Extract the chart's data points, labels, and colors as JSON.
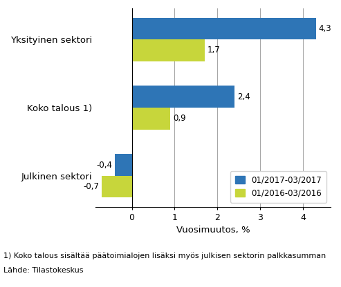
{
  "categories": [
    "Julkinen sektori",
    "Koko talous 1)",
    "Yksityinen sektori"
  ],
  "series": [
    {
      "label": "01/2017-03/2017",
      "color": "#2e75b6",
      "values": [
        -0.4,
        2.4,
        4.3
      ]
    },
    {
      "label": "01/2016-03/2016",
      "color": "#c7d63b",
      "values": [
        -0.7,
        0.9,
        1.7
      ]
    }
  ],
  "xlabel": "Vuosimuutos, %",
  "xlim": [
    -0.85,
    4.65
  ],
  "xticks": [
    0,
    1,
    2,
    3,
    4
  ],
  "xtick_labels": [
    "0",
    "1",
    "2",
    "3",
    "4"
  ],
  "bar_height": 0.32,
  "footnote1": "1) Koko talous sisältää päätoimialojen lisäksi myös julkisen sektorin palkkasumman",
  "footnote2": "Lähde: Tilastokeskus",
  "value_label_fontsize": 8.5,
  "axis_label_fontsize": 9.5,
  "tick_fontsize": 9,
  "legend_fontsize": 8.5,
  "category_fontsize": 9.5,
  "footnote_fontsize": 8.0
}
